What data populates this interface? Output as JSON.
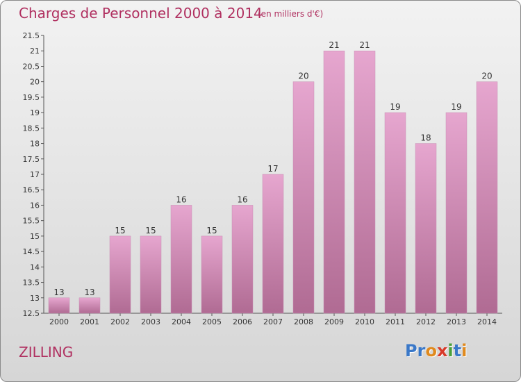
{
  "header": {
    "title": "Charges de Personnel 2000 à 2014",
    "subtitle": "(en milliers d'€)"
  },
  "footer": {
    "commune": "ZILLING",
    "logo_letters": [
      "P",
      "r",
      "o",
      "x",
      "i",
      "t",
      "i"
    ],
    "logo_colors": [
      "#3a78c8",
      "#3a78c8",
      "#e08a1e",
      "#d83a2a",
      "#4aa03a",
      "#3a78c8",
      "#e08a1e"
    ]
  },
  "colors": {
    "bar_top": "#e6a6cf",
    "bar_bottom": "#b06b93",
    "text": "#b03060"
  },
  "chart_data": {
    "type": "bar",
    "title": "Charges de Personnel 2000 à 2014",
    "subtitle": "(en milliers d'€)",
    "categories": [
      "2000",
      "2001",
      "2002",
      "2003",
      "2004",
      "2005",
      "2006",
      "2007",
      "2008",
      "2009",
      "2010",
      "2011",
      "2012",
      "2013",
      "2014"
    ],
    "values": [
      13,
      13,
      15,
      15,
      16,
      15,
      16,
      17,
      20,
      21,
      21,
      19,
      18,
      19,
      20
    ],
    "data_labels": [
      "13",
      "13",
      "15",
      "15",
      "16",
      "15",
      "16",
      "17",
      "20",
      "21",
      "21",
      "19",
      "18",
      "19",
      "20"
    ],
    "ylim": [
      12.5,
      21.5
    ],
    "yticks": [
      12.5,
      13,
      13.5,
      14,
      14.5,
      15,
      15.5,
      16,
      16.5,
      17,
      17.5,
      18,
      18.5,
      19,
      19.5,
      20,
      20.5,
      21,
      21.5
    ],
    "ytick_labels": [
      "12.5",
      "13",
      "13.5",
      "14",
      "14.5",
      "15",
      "15.5",
      "16",
      "16.5",
      "17",
      "17.5",
      "18",
      "18.5",
      "19",
      "19.5",
      "20",
      "20.5",
      "21",
      "21.5"
    ],
    "grid": false
  }
}
